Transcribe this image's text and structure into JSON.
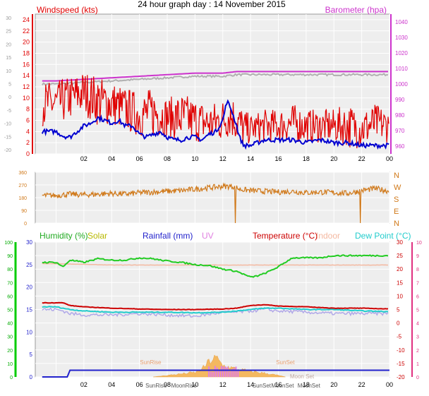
{
  "page": {
    "title": "24 hour graph day : 14 November 2015"
  },
  "colors": {
    "wind": "#e00000",
    "gust_area": "#ff2020",
    "wind_avg": "#0000d0",
    "barometer": "#cc33cc",
    "baro_grey": "#b0b0b0",
    "direction": "#d07818",
    "humidity": "#22cc22",
    "solar": "#b8b800",
    "rainfall": "#2222cc",
    "uv": "#e080e0",
    "temperature": "#cc0000",
    "indoor": "#f4b8a0",
    "dew_point": "#22cccc",
    "chill": "#b0a8e8",
    "solar_fill": "#f4b860",
    "sun_text": "#e8a070",
    "moon_text": "#c0a8a0",
    "left_axis_3": "#00aa00",
    "right_axis_3": "#e03080",
    "plot_bg": "#eeeeee",
    "grid": "#ffffff"
  },
  "chart_data": [
    {
      "type": "line",
      "name": "wind",
      "x_ticks": [
        "02",
        "04",
        "06",
        "08",
        "10",
        "12",
        "14",
        "16",
        "18",
        "20",
        "22",
        "00"
      ],
      "legend_left": "Windspeed (kts)",
      "legend_right": "Barometer (hpa)",
      "left_outer_ticks": [
        "30",
        "25",
        "20",
        "15",
        "10",
        "5",
        "0",
        "-5",
        "-10",
        "-15",
        "-20"
      ],
      "left_ticks": [
        "24",
        "22",
        "20",
        "18",
        "16",
        "14",
        "12",
        "10",
        "8",
        "6",
        "4",
        "2",
        "0"
      ],
      "right_ticks": [
        "1040",
        "1030",
        "1020",
        "1010",
        "1000",
        "990",
        "980",
        "970",
        "960"
      ],
      "ylim_wind": [
        0,
        25
      ],
      "ylim_baro": [
        955,
        1045
      ],
      "series": [
        {
          "name": "Gust",
          "hours": [
            0,
            1,
            2,
            3,
            4,
            5,
            6,
            7,
            8,
            9,
            10,
            11,
            12,
            12.5,
            13,
            13.5,
            14,
            15,
            16,
            17,
            18,
            19,
            20,
            21,
            22,
            23,
            24
          ],
          "hi": [
            13,
            14,
            15,
            14,
            13,
            12,
            11,
            12,
            10,
            11,
            10,
            9,
            10,
            11,
            10,
            8,
            7,
            8,
            8,
            9,
            8,
            8,
            8,
            9,
            8,
            9,
            8
          ],
          "lo": [
            5,
            6,
            7,
            5,
            5,
            4,
            3,
            3,
            3,
            2,
            2,
            2,
            2,
            3,
            2,
            1,
            2,
            2,
            2,
            2,
            2,
            2,
            2,
            1,
            1,
            2,
            2
          ]
        },
        {
          "name": "Average",
          "hours": [
            0,
            0.5,
            1,
            1.5,
            2,
            2.5,
            3,
            3.5,
            4,
            4.5,
            5,
            5.5,
            6,
            6.5,
            7,
            7.5,
            8,
            8.5,
            9,
            9.5,
            10,
            10.5,
            11,
            11.5,
            12,
            12.3,
            12.6,
            13,
            13.2,
            13.5,
            14,
            14.5,
            15,
            16,
            17,
            18,
            19,
            20,
            21,
            22,
            23,
            24
          ],
          "values": [
            4,
            3.2,
            3,
            4,
            5,
            5.5,
            6.5,
            6,
            5.5,
            6,
            5,
            5,
            3.5,
            3,
            3.5,
            4,
            3,
            2.5,
            2.5,
            3,
            3,
            2.5,
            3.5,
            4,
            6,
            9.5,
            8,
            5,
            3,
            1.5,
            1.5,
            2,
            2.5,
            2.5,
            2.5,
            2,
            2.5,
            2,
            2,
            1.5,
            1.5,
            1.5
          ]
        },
        {
          "name": "Barometer",
          "hours": [
            0,
            2,
            4,
            6,
            8,
            10,
            12,
            13,
            14,
            16,
            18,
            20,
            22,
            24
          ],
          "values": [
            1002,
            1003,
            1004,
            1005,
            1006,
            1007,
            1007,
            1008,
            1008,
            1008,
            1008,
            1008,
            1008,
            1008
          ]
        }
      ]
    },
    {
      "type": "line",
      "name": "wind_direction",
      "left_ticks": [
        "360",
        "270",
        "180",
        "90",
        "0"
      ],
      "compass_labels": [
        "N",
        "W",
        "S",
        "E",
        "N"
      ],
      "ylim": [
        0,
        360
      ],
      "hours": [
        0,
        1,
        2,
        3,
        4,
        5,
        6,
        7,
        8,
        9,
        10,
        11,
        12,
        12.8,
        13.2,
        14,
        15,
        16,
        17,
        18,
        19,
        20,
        21,
        22,
        23,
        24
      ],
      "values": [
        195,
        205,
        200,
        205,
        210,
        205,
        215,
        220,
        225,
        230,
        240,
        250,
        260,
        260,
        240,
        230,
        225,
        220,
        225,
        215,
        220,
        215,
        210,
        230,
        245,
        225
      ]
    },
    {
      "type": "line",
      "name": "weather",
      "legend": {
        "humidity": "Humidity (%)",
        "solar": "Solar",
        "rainfall": "Rainfall (mm)",
        "uv": "UV",
        "temperature": "Temperature (°C)",
        "indoor": "Indoor",
        "dew_point": "Dew Point (°C)"
      },
      "left_outer_ticks": [
        "100",
        "90",
        "80",
        "70",
        "60",
        "50",
        "40",
        "30",
        "20",
        "10",
        "0"
      ],
      "left_ticks": [
        "30",
        "25",
        "20",
        "15",
        "10",
        "5",
        "0"
      ],
      "right_temp_ticks": [
        "30",
        "25",
        "20",
        "15",
        "10",
        "5",
        "0",
        "-5",
        "-10",
        "-15",
        "-20"
      ],
      "right_uv_ticks": [
        "10",
        "9",
        "8",
        "7",
        "6",
        "5",
        "4",
        "3",
        "2",
        "1",
        "0"
      ],
      "ylim_temp": [
        -20,
        30
      ],
      "annotations": [
        "SunRise",
        "SunSet",
        "Moon Set",
        "SunRise",
        "MoonRise",
        "SunSet",
        "MoonSet",
        "MoonSet"
      ],
      "series": [
        {
          "name": "Humidity",
          "hours": [
            0,
            0.5,
            1,
            2,
            3,
            4,
            5,
            6,
            7,
            7.5,
            8,
            9,
            10,
            11,
            12,
            13,
            14,
            14.5,
            15,
            16,
            17,
            18,
            19,
            20,
            21,
            22,
            23,
            24
          ],
          "values": [
            25.5,
            24.5,
            26,
            25.5,
            26.3,
            26,
            26,
            26.5,
            26.3,
            26,
            25.8,
            25.5,
            25,
            24.8,
            24,
            23.5,
            22.2,
            22.5,
            23,
            24.5,
            26.5,
            26.5,
            26.5,
            27,
            27,
            27,
            27,
            27
          ]
        },
        {
          "name": "Indoor",
          "hours": [
            0,
            4,
            8,
            12,
            16,
            20,
            24
          ],
          "values": [
            22,
            21.5,
            21.5,
            21.5,
            21.5,
            21.5,
            21.5
          ]
        },
        {
          "name": "Temperature",
          "hours": [
            0,
            0.5,
            1,
            2,
            4,
            6,
            8,
            10,
            12,
            13,
            14,
            15,
            16,
            18,
            20,
            22,
            24
          ],
          "values": [
            7.5,
            7.5,
            6.5,
            6,
            5.5,
            5.2,
            5,
            5,
            5.2,
            5.5,
            6.5,
            6.8,
            6.3,
            6,
            5.5,
            5.5,
            5.2
          ]
        },
        {
          "name": "Dew Point",
          "hours": [
            0,
            0.5,
            1,
            2,
            4,
            6,
            8,
            10,
            12,
            13,
            14,
            15,
            16,
            18,
            20,
            22,
            24
          ],
          "values": [
            6,
            5.5,
            5,
            4.5,
            4,
            4,
            4,
            3.8,
            4,
            4.5,
            5,
            5.5,
            5.5,
            5,
            5,
            4.5,
            4.2
          ]
        },
        {
          "name": "Chill",
          "hours": [
            0,
            0.5,
            1,
            2,
            4,
            6,
            8,
            10,
            12,
            13,
            14,
            15,
            16,
            18,
            20,
            22,
            24
          ],
          "values": [
            5,
            4.5,
            3.5,
            3,
            3,
            3.5,
            3,
            2.5,
            4,
            4,
            4.5,
            5,
            4.5,
            4,
            3.5,
            3.5,
            3.5
          ]
        },
        {
          "name": "Rainfall",
          "hours": [
            0,
            0.8,
            1,
            24
          ],
          "values": [
            0,
            0,
            1.5,
            1.5
          ]
        },
        {
          "name": "Solar",
          "hours": [
            7,
            8,
            9,
            10,
            10.5,
            11,
            11.5,
            12,
            12.5,
            13,
            14,
            15,
            16,
            16.5
          ],
          "values": [
            0,
            0.4,
            0.8,
            1.2,
            2,
            4,
            5,
            3,
            2.5,
            2,
            1.5,
            1,
            0.4,
            0
          ]
        }
      ]
    }
  ]
}
